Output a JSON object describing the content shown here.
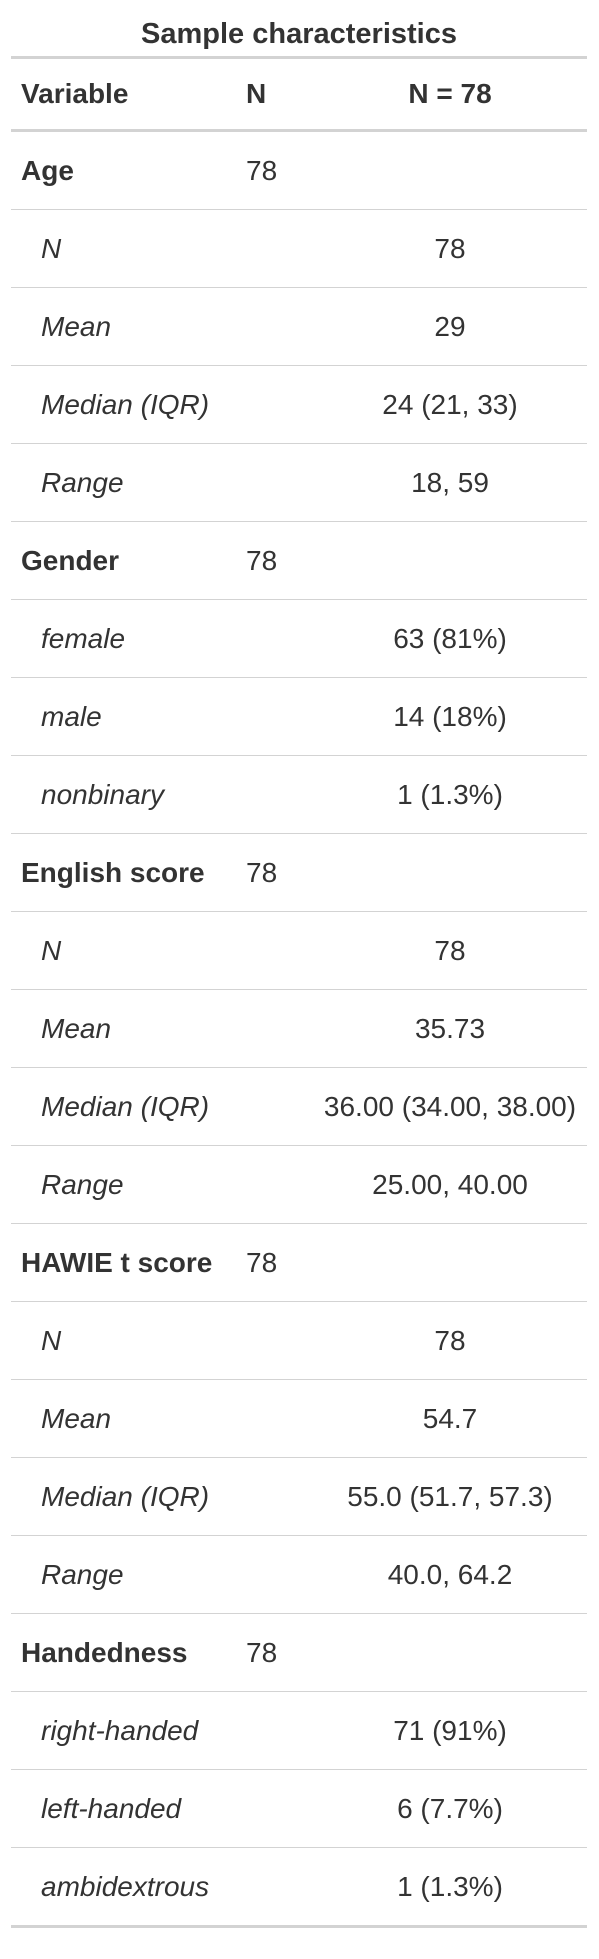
{
  "caption": "Sample characteristics",
  "columns": {
    "variable": "Variable",
    "n": "N",
    "stat": "N = 78"
  },
  "rows": [
    {
      "label": "Age",
      "type": "variable",
      "n": "78",
      "stat": ""
    },
    {
      "label": "N",
      "type": "level",
      "n": "",
      "stat": "78"
    },
    {
      "label": "Mean",
      "type": "level",
      "n": "",
      "stat": "29"
    },
    {
      "label": "Median (IQR)",
      "type": "level",
      "n": "",
      "stat": "24 (21, 33)"
    },
    {
      "label": "Range",
      "type": "level",
      "n": "",
      "stat": "18, 59"
    },
    {
      "label": "Gender",
      "type": "variable",
      "n": "78",
      "stat": ""
    },
    {
      "label": "female",
      "type": "level",
      "n": "",
      "stat": "63 (81%)"
    },
    {
      "label": "male",
      "type": "level",
      "n": "",
      "stat": "14 (18%)"
    },
    {
      "label": "nonbinary",
      "type": "level",
      "n": "",
      "stat": "1 (1.3%)"
    },
    {
      "label": "English score",
      "type": "variable",
      "n": "78",
      "stat": ""
    },
    {
      "label": "N",
      "type": "level",
      "n": "",
      "stat": "78"
    },
    {
      "label": "Mean",
      "type": "level",
      "n": "",
      "stat": "35.73"
    },
    {
      "label": "Median (IQR)",
      "type": "level",
      "n": "",
      "stat": "36.00 (34.00, 38.00)"
    },
    {
      "label": "Range",
      "type": "level",
      "n": "",
      "stat": "25.00, 40.00"
    },
    {
      "label": "HAWIE t score",
      "type": "variable",
      "n": "78",
      "stat": ""
    },
    {
      "label": "N",
      "type": "level",
      "n": "",
      "stat": "78"
    },
    {
      "label": "Mean",
      "type": "level",
      "n": "",
      "stat": "54.7"
    },
    {
      "label": "Median (IQR)",
      "type": "level",
      "n": "",
      "stat": "55.0 (51.7, 57.3)"
    },
    {
      "label": "Range",
      "type": "level",
      "n": "",
      "stat": "40.0, 64.2"
    },
    {
      "label": "Handedness",
      "type": "variable",
      "n": "78",
      "stat": ""
    },
    {
      "label": "right-handed",
      "type": "level",
      "n": "",
      "stat": "71 (91%)"
    },
    {
      "label": "left-handed",
      "type": "level",
      "n": "",
      "stat": "6 (7.7%)"
    },
    {
      "label": "ambidextrous",
      "type": "level",
      "n": "",
      "stat": "1 (1.3%)"
    }
  ]
}
